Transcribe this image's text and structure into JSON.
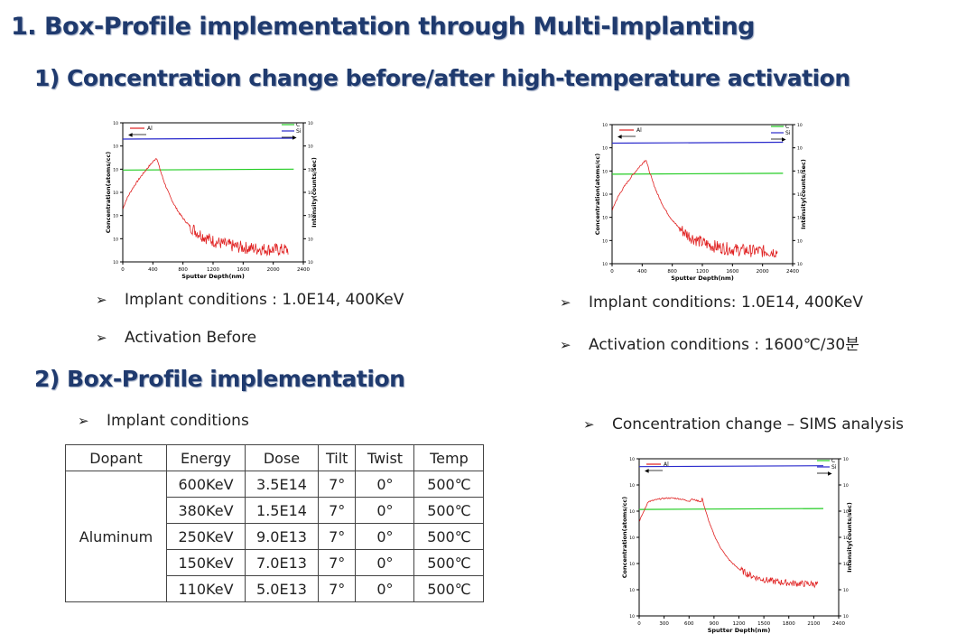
{
  "title": "1. Box-Profile implementation through Multi-Implanting",
  "section1": {
    "heading": "1) Concentration change before/after high-temperature activation",
    "left": {
      "bullets": [
        "Implant conditions : 1.0E14, 400KeV",
        "Activation  Before"
      ]
    },
    "right": {
      "bullets": [
        "Implant conditions: 1.0E14, 400KeV",
        "Activation conditions : 1600℃/30분"
      ]
    }
  },
  "section2": {
    "heading": "2) Box-Profile implementation",
    "left_bullet": "Implant conditions",
    "right_bullet": "Concentration change – SIMS analysis",
    "table": {
      "headers": [
        "Dopant",
        "Energy",
        "Dose",
        "Tilt",
        "Twist",
        "Temp"
      ],
      "dopant": "Aluminum",
      "rows": [
        [
          "600KeV",
          "3.5E14",
          "7°",
          "0°",
          "500℃"
        ],
        [
          "380KeV",
          "1.5E14",
          "7°",
          "0°",
          "500℃"
        ],
        [
          "250KeV",
          "9.0E13",
          "7°",
          "0°",
          "500℃"
        ],
        [
          "150KeV",
          "7.0E13",
          "7°",
          "0°",
          "500℃"
        ],
        [
          "110KeV",
          "5.0E13",
          "7°",
          "0°",
          "500℃"
        ]
      ]
    }
  },
  "bullet_arrow": "➢",
  "colors": {
    "heading": "#1f3a6e",
    "al": "#e02020",
    "c": "#22cc22",
    "si": "#2a2acc"
  },
  "charts": [
    {
      "type": "line",
      "xlabel": "Sputter Depth(nm)",
      "ylabel": "Concentration(atoms/cc)",
      "y2label": "Intensity(counts/sec)",
      "xticks": [
        "0",
        "400",
        "800",
        "1200",
        "1600",
        "2000",
        "2400"
      ],
      "xlim": [
        0,
        2400
      ],
      "series": [
        {
          "name": "Al"
        },
        {
          "name": "C"
        },
        {
          "name": "Si"
        }
      ],
      "al_profile": {
        "peak_depth": 450,
        "peak_log": 18.5,
        "end_depth": 2200
      },
      "c_level_log": 18.0,
      "si_level_log": 19.3
    },
    {
      "type": "line",
      "xlabel": "Sputter Depth(nm)",
      "ylabel": "Concentration(atoms/cc)",
      "y2label": "Intensity(counts/sec)",
      "xticks": [
        "0",
        "400",
        "800",
        "1200",
        "1600",
        "2000",
        "2400"
      ],
      "xlim": [
        0,
        2400
      ],
      "series": [
        {
          "name": "Al"
        },
        {
          "name": "C"
        },
        {
          "name": "Si"
        }
      ],
      "al_profile": {
        "peak_depth": 450,
        "peak_log": 18.5,
        "end_depth": 2200
      },
      "c_level_log": 17.9,
      "si_level_log": 19.2
    },
    {
      "type": "line",
      "xlabel": "Sputter Depth(nm)",
      "ylabel": "Concentration(atoms/cc)",
      "y2label": "Intensity(counts/sec)",
      "xticks": [
        "0",
        "300",
        "600",
        "900",
        "1200",
        "1500",
        "1800",
        "2100",
        "2400"
      ],
      "xlim": [
        0,
        2400
      ],
      "series": [
        {
          "name": "Al"
        },
        {
          "name": "C"
        },
        {
          "name": "Si"
        }
      ],
      "al_profile": {
        "plateau_start": 100,
        "plateau_end": 750,
        "plateau_log": 18.6,
        "end_depth": 2150
      },
      "c_level_log": 18.1,
      "si_level_log": 19.7
    }
  ]
}
